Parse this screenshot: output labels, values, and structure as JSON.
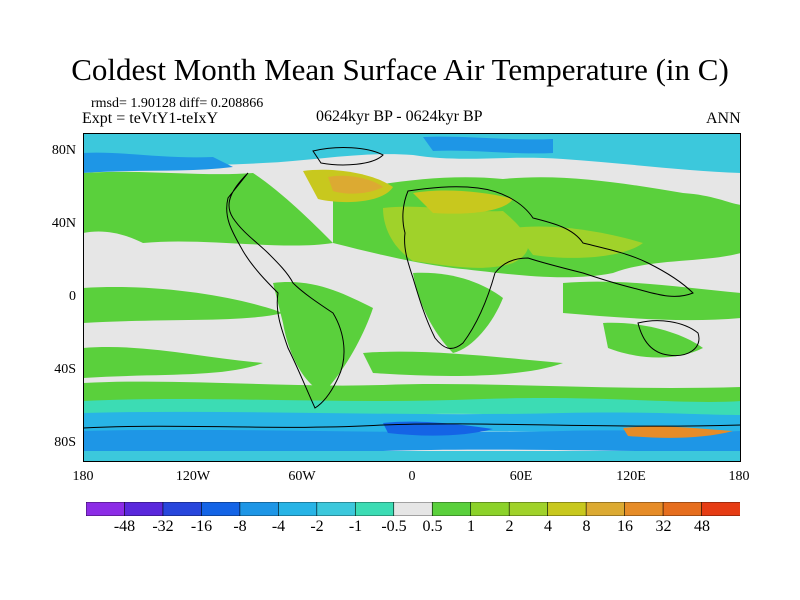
{
  "title": "Coldest Month Mean Surface Air Temperature (in C)",
  "stats": "rmsd= 1.90128 diff= 0.208866",
  "experiment": "Expt = teVtY1-teIxY",
  "period": "0624kyr BP - 0624kyr BP",
  "season": "ANN",
  "map": {
    "lat_ticks": [
      "80N",
      "40N",
      "0",
      "40S",
      "80S"
    ],
    "lon_ticks": [
      "180",
      "120W",
      "60W",
      "0",
      "60E",
      "120E",
      "180"
    ],
    "extent": {
      "lon": [
        -180,
        180
      ],
      "lat": [
        -90,
        90
      ]
    },
    "colors": {
      "ocean_neutral": "#e6e6e6",
      "warm_light": "#5ad03c",
      "warm_mid": "#a0d22a",
      "warm_high": "#c8c81e",
      "warm_orange": "#dcaa32",
      "cold_light": "#3cdcb4",
      "cold_mid": "#3cc8dc",
      "cold_deep": "#1e96e6",
      "cold_strong": "#1464e6",
      "coastline": "#000000"
    }
  },
  "colorbar": {
    "labels": [
      "-48",
      "-32",
      "-16",
      "-8",
      "-4",
      "-2",
      "-1",
      "-0.5",
      "0.5",
      "1",
      "2",
      "4",
      "8",
      "16",
      "32",
      "48"
    ],
    "colors": [
      "#8c2ce6",
      "#5a28dc",
      "#2846dc",
      "#1464e6",
      "#1e96e6",
      "#28b4e6",
      "#3cc8dc",
      "#3cdcb4",
      "#e6e6e6",
      "#5ad03c",
      "#8cd22a",
      "#a0d22a",
      "#c8c81e",
      "#dcaa32",
      "#e68c28",
      "#e66e1e",
      "#e63c14"
    ]
  }
}
